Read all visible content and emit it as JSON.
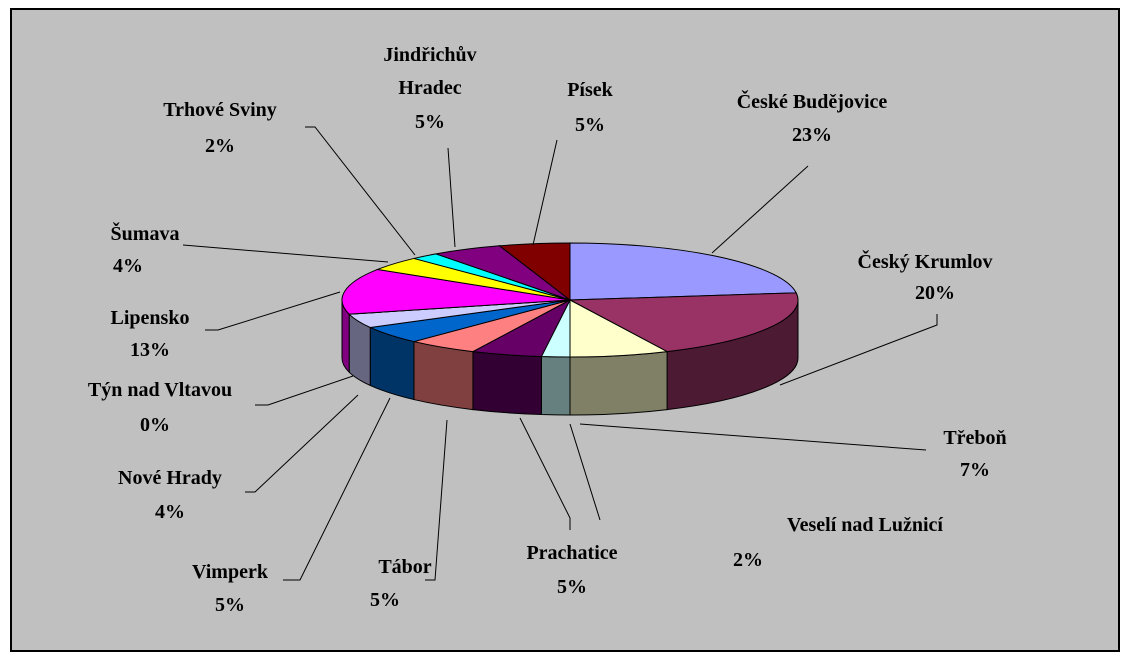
{
  "chart_data": {
    "type": "pie",
    "categories": [
      "České Budějovice",
      "Český Krumlov",
      "Třeboň",
      "Veselí nad Lužnicí",
      "Prachatice",
      "Tábor",
      "Vimperk",
      "Nové Hrady",
      "Týn nad Vltavou",
      "Lipensko",
      "Šumava",
      "Trhové Sviny",
      "Jindřichův Hradec",
      "Písek"
    ],
    "values": [
      23,
      20,
      7,
      2,
      5,
      5,
      5,
      4,
      0,
      13,
      4,
      2,
      5,
      5
    ],
    "value_labels": [
      "23%",
      "20%",
      "7%",
      "2%",
      "5%",
      "5%",
      "5%",
      "4%",
      "0%",
      "13%",
      "4%",
      "2%",
      "5%",
      "5%"
    ],
    "colors": [
      "#9999ff",
      "#993366",
      "#ffffcc",
      "#ccffff",
      "#660066",
      "#ff8080",
      "#0066cc",
      "#ccccff",
      "#000080",
      "#ff00ff",
      "#ffff00",
      "#00ffff",
      "#800080",
      "#800000"
    ]
  }
}
